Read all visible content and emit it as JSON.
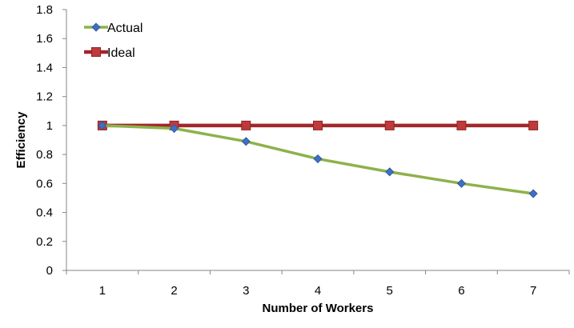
{
  "chart_data": {
    "type": "line",
    "title": "",
    "xlabel": "Number of Workers",
    "ylabel": "Efficiency",
    "x": [
      1,
      2,
      3,
      4,
      5,
      6,
      7
    ],
    "x_tick_labels": [
      "1",
      "2",
      "3",
      "4",
      "5",
      "6",
      "7"
    ],
    "ylim": [
      0,
      1.8
    ],
    "y_ticks": [
      0,
      0.2,
      0.4,
      0.6,
      0.8,
      1,
      1.2,
      1.4,
      1.6,
      1.8
    ],
    "y_tick_labels": [
      "0",
      "0.2",
      "0.4",
      "0.6",
      "0.8",
      "1",
      "1.2",
      "1.4",
      "1.6",
      "1.8"
    ],
    "grid": false,
    "legend_position": "top-left",
    "series": [
      {
        "name": "Ideal",
        "values": [
          1,
          1,
          1,
          1,
          1,
          1,
          1
        ],
        "line_color": "#A0282B",
        "marker": "square",
        "marker_color": "#C0393B"
      },
      {
        "name": "Actual",
        "values": [
          1.0,
          0.98,
          0.89,
          0.77,
          0.68,
          0.6,
          0.53
        ],
        "line_color": "#8DB24B",
        "marker": "diamond",
        "marker_color": "#3D6FC4"
      }
    ]
  }
}
